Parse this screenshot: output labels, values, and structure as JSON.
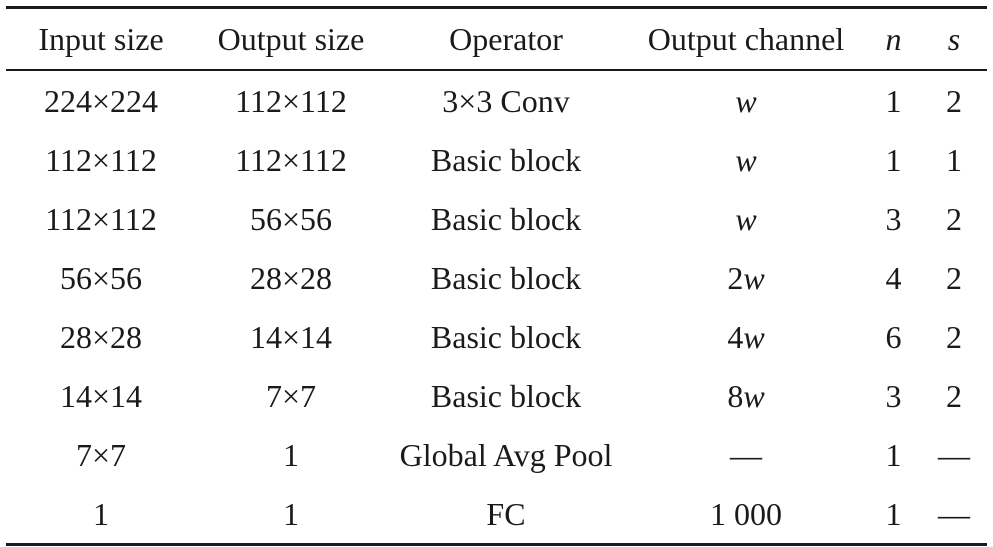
{
  "table": {
    "headers": [
      {
        "text": "Input size",
        "italic": false
      },
      {
        "text": "Output size",
        "italic": false
      },
      {
        "text": "Operator",
        "italic": false
      },
      {
        "text": "Output channel",
        "italic": false
      },
      {
        "text": "n",
        "italic": true
      },
      {
        "text": "s",
        "italic": true
      }
    ],
    "rows": [
      {
        "input": "224×224",
        "output": "112×112",
        "operator": "3×3 Conv",
        "channel_num": "",
        "channel_var": "w",
        "n": "1",
        "s": "2"
      },
      {
        "input": "112×112",
        "output": "112×112",
        "operator": "Basic block",
        "channel_num": "",
        "channel_var": "w",
        "n": "1",
        "s": "1"
      },
      {
        "input": "112×112",
        "output": "56×56",
        "operator": "Basic block",
        "channel_num": "",
        "channel_var": "w",
        "n": "3",
        "s": "2"
      },
      {
        "input": "56×56",
        "output": "28×28",
        "operator": "Basic block",
        "channel_num": "2",
        "channel_var": "w",
        "n": "4",
        "s": "2"
      },
      {
        "input": "28×28",
        "output": "14×14",
        "operator": "Basic block",
        "channel_num": "4",
        "channel_var": "w",
        "n": "6",
        "s": "2"
      },
      {
        "input": "14×14",
        "output": "7×7",
        "operator": "Basic block",
        "channel_num": "8",
        "channel_var": "w",
        "n": "3",
        "s": "2"
      },
      {
        "input": "7×7",
        "output": "1",
        "operator": "Global Avg Pool",
        "channel_num": "—",
        "channel_var": "",
        "n": "1",
        "s": "—"
      },
      {
        "input": "1",
        "output": "1",
        "operator": "FC",
        "channel_num": "1 000",
        "channel_var": "",
        "n": "1",
        "s": "—"
      }
    ]
  }
}
